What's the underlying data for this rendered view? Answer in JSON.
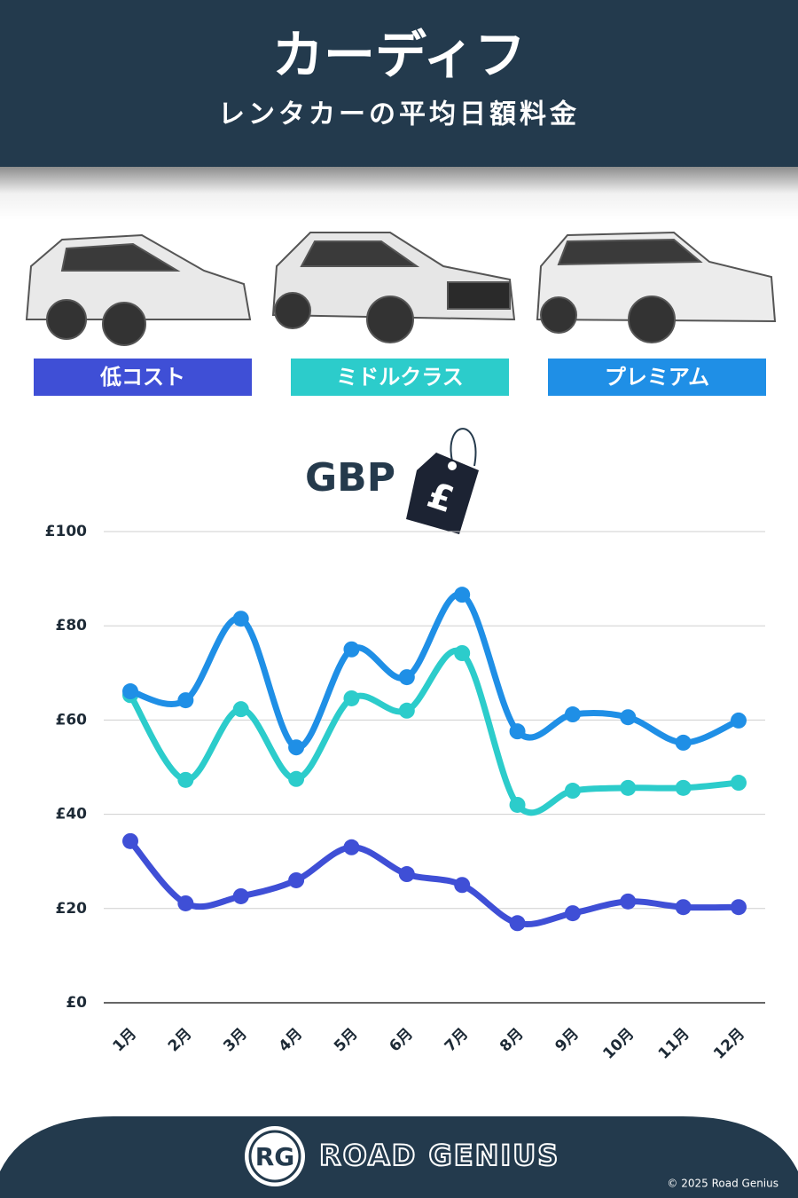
{
  "header": {
    "title": "カーディフ",
    "subtitle": "レンタカーの平均日額料金"
  },
  "chart_data": {
    "type": "line",
    "unit_label": "GBP",
    "categories": [
      "1月",
      "2月",
      "3月",
      "4月",
      "5月",
      "6月",
      "7月",
      "8月",
      "9月",
      "10月",
      "11月",
      "12月"
    ],
    "series": [
      {
        "name": "低コスト",
        "color": "#3f4fd6",
        "values": [
          34.3,
          21.1,
          22.6,
          26,
          33,
          27.3,
          25,
          16.9,
          19,
          21.5,
          20.3,
          20.3
        ]
      },
      {
        "name": "ミドルクラス",
        "color": "#2ccccb",
        "values": [
          65.3,
          47.3,
          62.3,
          47.5,
          64.6,
          62,
          74.2,
          42,
          45,
          45.6,
          45.6,
          46.7
        ]
      },
      {
        "name": "プレミアム",
        "color": "#1f8fe6",
        "values": [
          66.1,
          64.2,
          81.5,
          54.2,
          75,
          69.1,
          86.6,
          57.6,
          61.2,
          60.6,
          55.2,
          59.9
        ]
      }
    ],
    "ylim": [
      0,
      100
    ],
    "yticks": [
      {
        "value": 0,
        "label": "£0"
      },
      {
        "value": 20,
        "label": "£20"
      },
      {
        "value": 40,
        "label": "£40"
      },
      {
        "value": 60,
        "label": "£60"
      },
      {
        "value": 80,
        "label": "£80"
      },
      {
        "value": 100,
        "label": "£100"
      }
    ],
    "grid": true
  },
  "footer": {
    "logo": "RG",
    "brand": "ROAD GENIUS",
    "copyright": "© 2025 Road Genius"
  }
}
